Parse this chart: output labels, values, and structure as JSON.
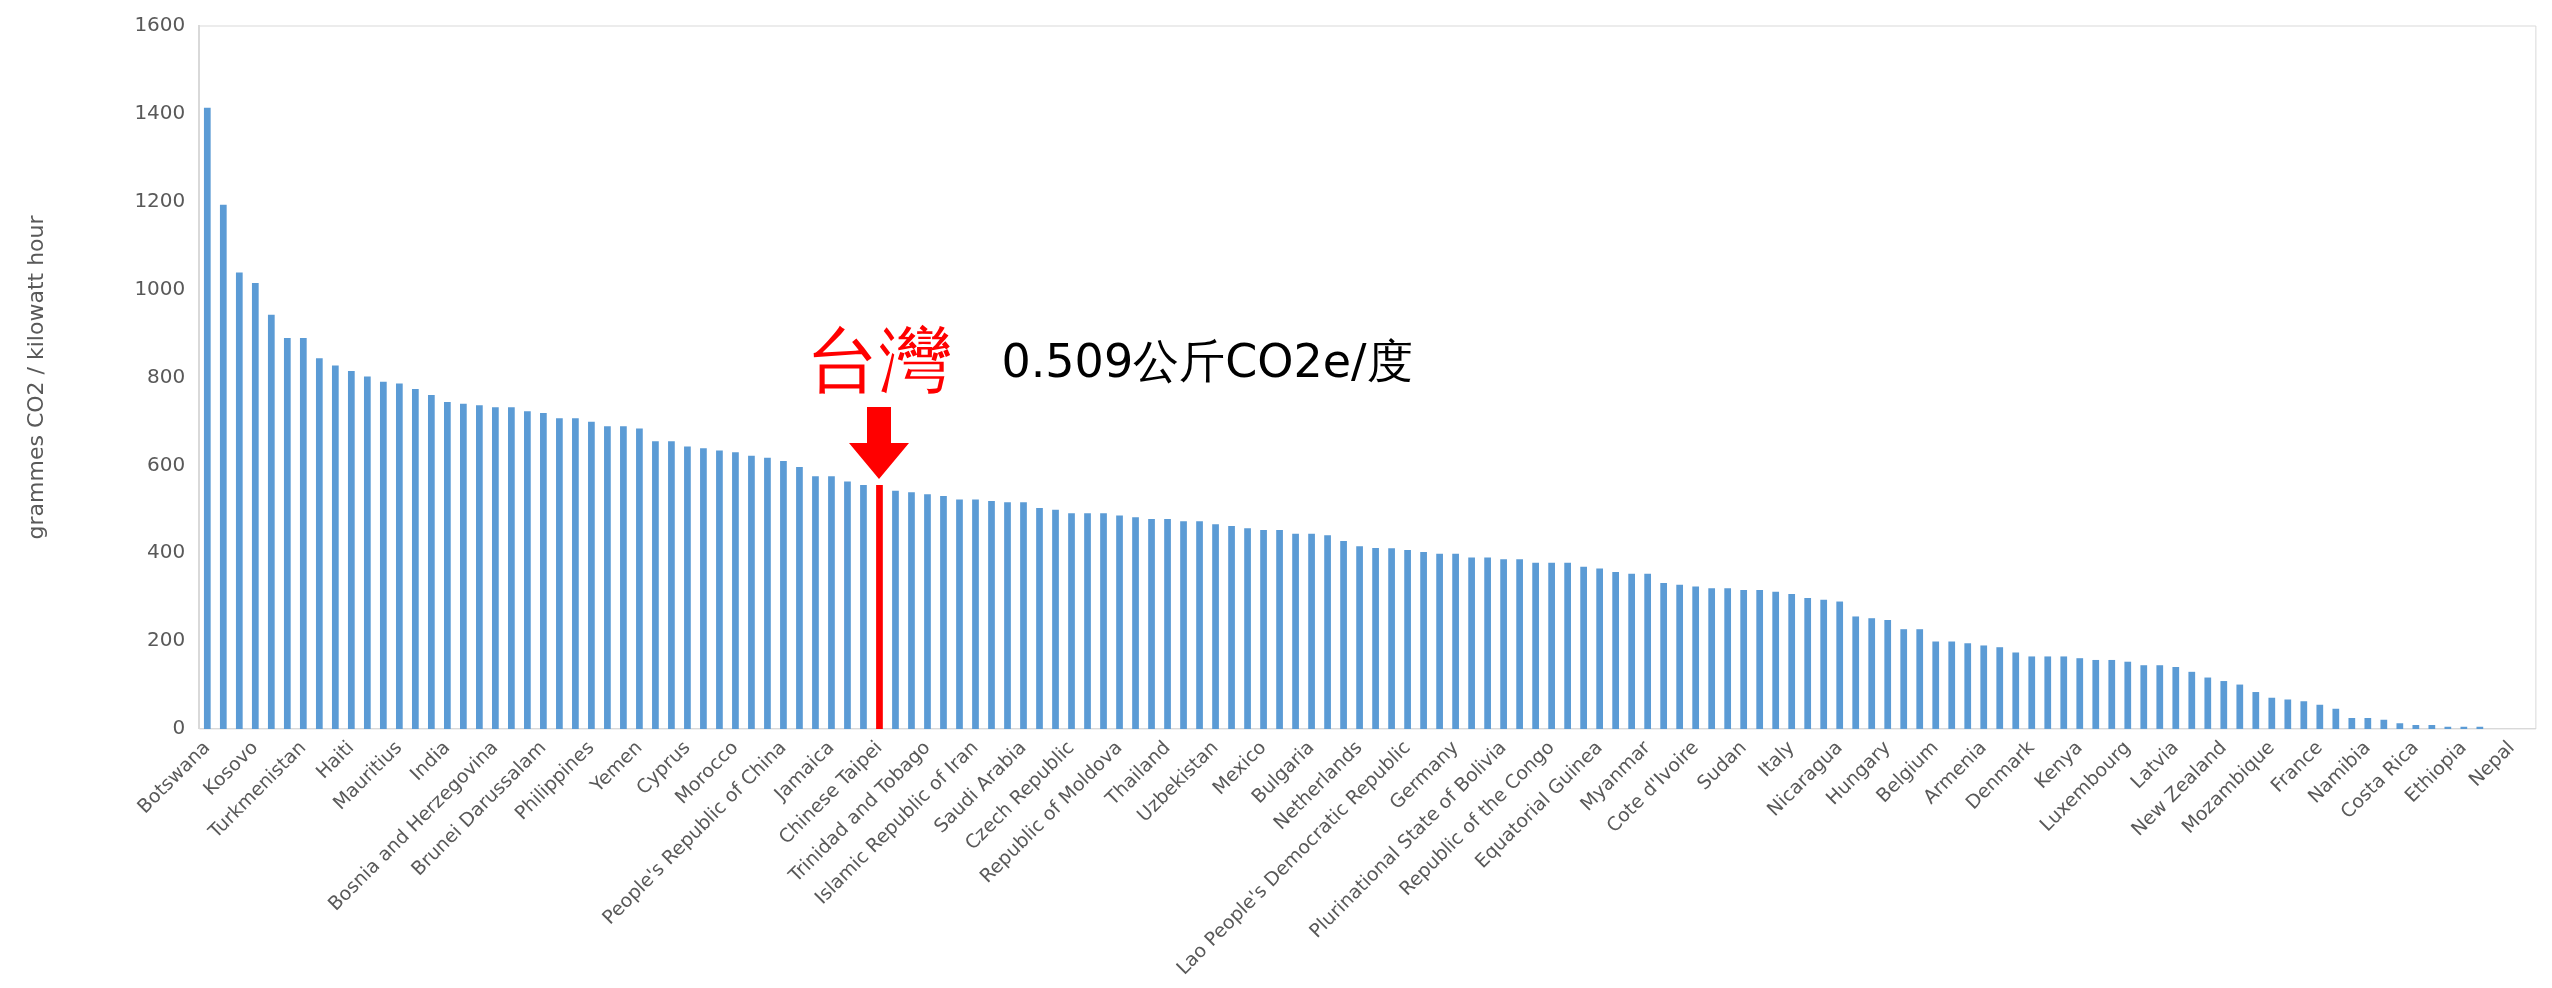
{
  "chart_data": {
    "type": "bar",
    "ylabel": "grammes CO2 / kilowatt hour",
    "categories": [
      "Botswana",
      null,
      null,
      "Kosovo",
      null,
      null,
      "Turkmenistan",
      null,
      null,
      "Haiti",
      null,
      null,
      "Mauritius",
      null,
      null,
      "India",
      null,
      null,
      "Bosnia and Herzegovina",
      null,
      null,
      "Brunei Darussalam",
      null,
      null,
      "Philippines",
      null,
      null,
      "Yemen",
      null,
      null,
      "Cyprus",
      null,
      null,
      "Morocco",
      null,
      null,
      "People's Republic of China",
      null,
      null,
      "Jamaica",
      null,
      null,
      "Chinese Taipei",
      null,
      null,
      "Trinidad and Tobago",
      null,
      null,
      "Islamic Republic of Iran",
      null,
      null,
      "Saudi Arabia",
      null,
      null,
      "Czech Republic",
      null,
      null,
      "Republic of Moldova",
      null,
      null,
      "Thailand",
      null,
      null,
      "Uzbekistan",
      null,
      null,
      "Mexico",
      null,
      null,
      "Bulgaria",
      null,
      null,
      "Netherlands",
      null,
      null,
      "Lao People's Democratic Republic",
      null,
      null,
      "Germany",
      null,
      null,
      "Plurinational State of Bolivia",
      null,
      null,
      "Republic of the Congo",
      null,
      null,
      "Equatorial Guinea",
      null,
      null,
      "Myanmar",
      null,
      null,
      "Cote d'Ivoire",
      null,
      null,
      "Sudan",
      null,
      null,
      "Italy",
      null,
      null,
      "Nicaragua",
      null,
      null,
      "Hungary",
      null,
      null,
      "Belgium",
      null,
      null,
      "Armenia",
      null,
      null,
      "Denmark",
      null,
      null,
      "Kenya",
      null,
      null,
      "Luxembourg",
      null,
      null,
      "Latvia",
      null,
      null,
      "New Zealand",
      null,
      null,
      "Mozambique",
      null,
      null,
      "France",
      null,
      null,
      "Namibia",
      null,
      null,
      "Costa Rica",
      null,
      null,
      "Ethiopia",
      null,
      null,
      "Nepal",
      null
    ],
    "values": [
      1414,
      1193,
      1039,
      1015,
      943,
      890,
      890,
      844,
      827,
      815,
      802,
      790,
      786,
      774,
      760,
      744,
      740,
      737,
      732,
      732,
      723,
      719,
      707,
      707,
      699,
      689,
      689,
      684,
      655,
      655,
      643,
      639,
      634,
      630,
      622,
      617,
      610,
      596,
      575,
      575,
      563,
      555,
      555,
      542,
      539,
      534,
      530,
      522,
      522,
      519,
      516,
      516,
      503,
      499,
      491,
      491,
      491,
      486,
      482,
      478,
      478,
      473,
      473,
      466,
      462,
      457,
      453,
      453,
      444,
      444,
      441,
      428,
      416,
      412,
      411,
      407,
      403,
      399,
      399,
      390,
      390,
      386,
      386,
      378,
      378,
      378,
      369,
      365,
      357,
      353,
      353,
      332,
      328,
      324,
      320,
      320,
      316,
      316,
      312,
      307,
      298,
      294,
      290,
      256,
      252,
      248,
      227,
      227,
      199,
      199,
      195,
      190,
      186,
      174,
      165,
      165,
      165,
      161,
      157,
      157,
      153,
      145,
      145,
      141,
      130,
      117,
      109,
      101,
      84,
      71,
      67,
      63,
      55,
      46,
      25,
      25,
      21,
      13,
      9,
      9,
      5,
      5,
      5,
      0,
      0,
      0
    ],
    "colors": [
      "#5b9bd5",
      "#5b9bd5",
      "#5b9bd5",
      "#5b9bd5",
      "#5b9bd5",
      "#5b9bd5",
      "#5b9bd5",
      "#5b9bd5",
      "#5b9bd5",
      "#5b9bd5",
      "#5b9bd5",
      "#5b9bd5",
      "#5b9bd5",
      "#5b9bd5",
      "#5b9bd5",
      "#5b9bd5",
      "#5b9bd5",
      "#5b9bd5",
      "#5b9bd5",
      "#5b9bd5",
      "#5b9bd5",
      "#5b9bd5",
      "#5b9bd5",
      "#5b9bd5",
      "#5b9bd5",
      "#5b9bd5",
      "#5b9bd5",
      "#5b9bd5",
      "#5b9bd5",
      "#5b9bd5",
      "#5b9bd5",
      "#5b9bd5",
      "#5b9bd5",
      "#5b9bd5",
      "#5b9bd5",
      "#5b9bd5",
      "#5b9bd5",
      "#5b9bd5",
      "#5b9bd5",
      "#5b9bd5",
      "#5b9bd5",
      "#5b9bd5",
      "#ff0000",
      "#5b9bd5",
      "#5b9bd5",
      "#5b9bd5",
      "#5b9bd5",
      "#5b9bd5",
      "#5b9bd5",
      "#5b9bd5",
      "#5b9bd5",
      "#5b9bd5",
      "#5b9bd5",
      "#5b9bd5",
      "#5b9bd5",
      "#5b9bd5",
      "#5b9bd5",
      "#5b9bd5",
      "#5b9bd5",
      "#5b9bd5",
      "#5b9bd5",
      "#5b9bd5",
      "#5b9bd5",
      "#5b9bd5",
      "#5b9bd5",
      "#5b9bd5",
      "#5b9bd5",
      "#5b9bd5",
      "#5b9bd5",
      "#5b9bd5",
      "#5b9bd5",
      "#5b9bd5",
      "#5b9bd5",
      "#5b9bd5",
      "#5b9bd5",
      "#5b9bd5",
      "#5b9bd5",
      "#5b9bd5",
      "#5b9bd5",
      "#5b9bd5",
      "#5b9bd5",
      "#5b9bd5",
      "#5b9bd5",
      "#5b9bd5",
      "#5b9bd5",
      "#5b9bd5",
      "#5b9bd5",
      "#5b9bd5",
      "#5b9bd5",
      "#5b9bd5",
      "#5b9bd5",
      "#5b9bd5",
      "#5b9bd5",
      "#5b9bd5",
      "#5b9bd5",
      "#5b9bd5",
      "#5b9bd5",
      "#5b9bd5",
      "#5b9bd5",
      "#5b9bd5",
      "#5b9bd5",
      "#5b9bd5",
      "#5b9bd5",
      "#5b9bd5",
      "#5b9bd5",
      "#5b9bd5",
      "#5b9bd5",
      "#5b9bd5",
      "#5b9bd5",
      "#5b9bd5",
      "#5b9bd5",
      "#5b9bd5",
      "#5b9bd5",
      "#5b9bd5",
      "#5b9bd5",
      "#5b9bd5",
      "#5b9bd5",
      "#5b9bd5",
      "#5b9bd5",
      "#5b9bd5",
      "#5b9bd5",
      "#5b9bd5",
      "#5b9bd5",
      "#5b9bd5",
      "#5b9bd5",
      "#5b9bd5",
      "#5b9bd5",
      "#5b9bd5",
      "#5b9bd5",
      "#5b9bd5",
      "#5b9bd5",
      "#5b9bd5",
      "#5b9bd5",
      "#5b9bd5",
      "#5b9bd5",
      "#5b9bd5",
      "#5b9bd5",
      "#5b9bd5",
      "#5b9bd5",
      "#5b9bd5",
      "#5b9bd5",
      "#5b9bd5",
      "#5b9bd5",
      "#5b9bd5",
      "#5b9bd5",
      "#5b9bd5"
    ],
    "ylim": [
      0,
      1600
    ],
    "yticks": [
      0,
      200,
      400,
      600,
      800,
      1000,
      1200,
      1400,
      1600
    ],
    "annotations": [
      {
        "text": "台灣",
        "x": "Chinese Taipei",
        "y": 555
      },
      "0.509公斤CO2e/度"
    ],
    "grid": false,
    "legend": false
  }
}
